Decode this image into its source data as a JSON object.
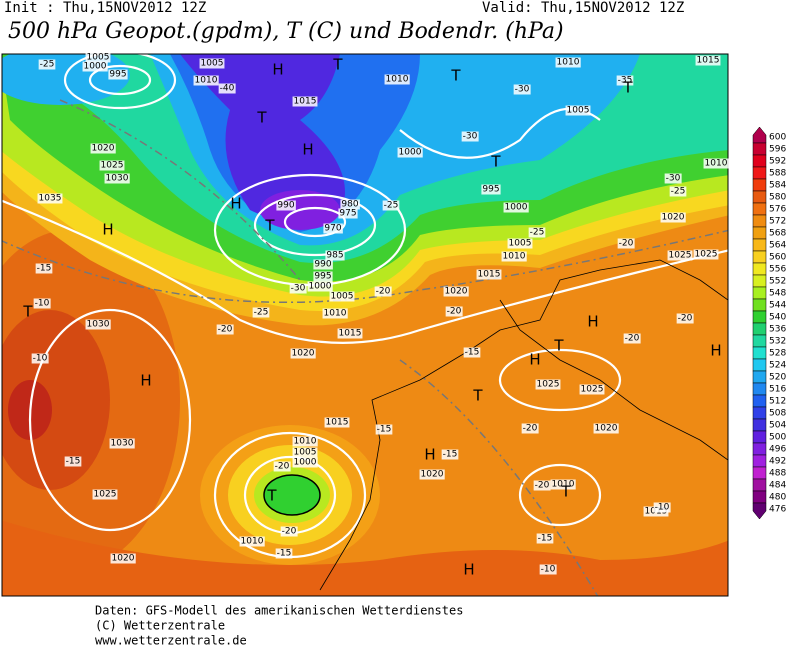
{
  "header": {
    "init": "Init : Thu,15NOV2012 12Z",
    "valid": "Valid: Thu,15NOV2012 12Z",
    "title": "500 hPa Geopot.(gpdm), T (C) und Bodendr. (hPa)"
  },
  "colorbar": {
    "values": [
      600,
      596,
      592,
      588,
      584,
      580,
      576,
      572,
      568,
      564,
      560,
      556,
      552,
      548,
      544,
      540,
      536,
      532,
      528,
      524,
      520,
      516,
      512,
      508,
      504,
      500,
      496,
      492,
      488,
      484,
      480,
      476
    ],
    "colors": [
      "#b0004c",
      "#c80030",
      "#e0001c",
      "#f01818",
      "#f03c0c",
      "#e85a10",
      "#f07010",
      "#f08c10",
      "#f0a010",
      "#f8b818",
      "#f8d020",
      "#f0e820",
      "#d8f020",
      "#a8f020",
      "#70e020",
      "#30d030",
      "#20d070",
      "#20d8a0",
      "#20e0d0",
      "#20c8f0",
      "#20a8f0",
      "#2088f0",
      "#2060f0",
      "#3040e8",
      "#4030e0",
      "#6020e0",
      "#8020e0",
      "#a020e0",
      "#c020d0",
      "#a010a0",
      "#800080",
      "#600070"
    ]
  },
  "map": {
    "pressure_labels": [
      "1005",
      "1000",
      "995",
      "1005",
      "1010",
      "1015",
      "1010",
      "1000",
      "1005",
      "1010",
      "1015",
      "1020",
      "1025",
      "1030",
      "1035",
      "990",
      "980",
      "975",
      "970",
      "985",
      "990",
      "995",
      "1000",
      "1005",
      "1010",
      "1015",
      "1020",
      "1030",
      "1030",
      "1025",
      "1020",
      "1015",
      "1010",
      "1005",
      "1000",
      "1010",
      "1020",
      "1025",
      "1025",
      "1020",
      "1015",
      "1010",
      "1025",
      "1025",
      "1020",
      "1020",
      "1015",
      "1010",
      "1005",
      "995",
      "1000",
      "1010"
    ],
    "temperature_labels": [
      "-25",
      "-40",
      "-30",
      "-35",
      "-30",
      "-30",
      "-25",
      "-25",
      "-20",
      "-20",
      "-20",
      "-20",
      "-15",
      "-10",
      "-10",
      "-15",
      "-20",
      "-20",
      "-15",
      "-15",
      "-20",
      "-15",
      "-20",
      "-10",
      "-15",
      "-10",
      "-20",
      "-15",
      "-20",
      "-25",
      "-25",
      "-30"
    ],
    "centers": [
      "H",
      "T",
      "T",
      "T",
      "T",
      "H",
      "T",
      "H",
      "T",
      "H",
      "T",
      "H",
      "H",
      "T",
      "H",
      "T",
      "H",
      "H",
      "T",
      "T",
      "H"
    ]
  },
  "footer": {
    "lines": [
      "Daten: GFS-Modell des amerikanischen Wetterdienstes",
      "(C) Wetterzentrale",
      "www.wetterzentrale.de"
    ]
  }
}
